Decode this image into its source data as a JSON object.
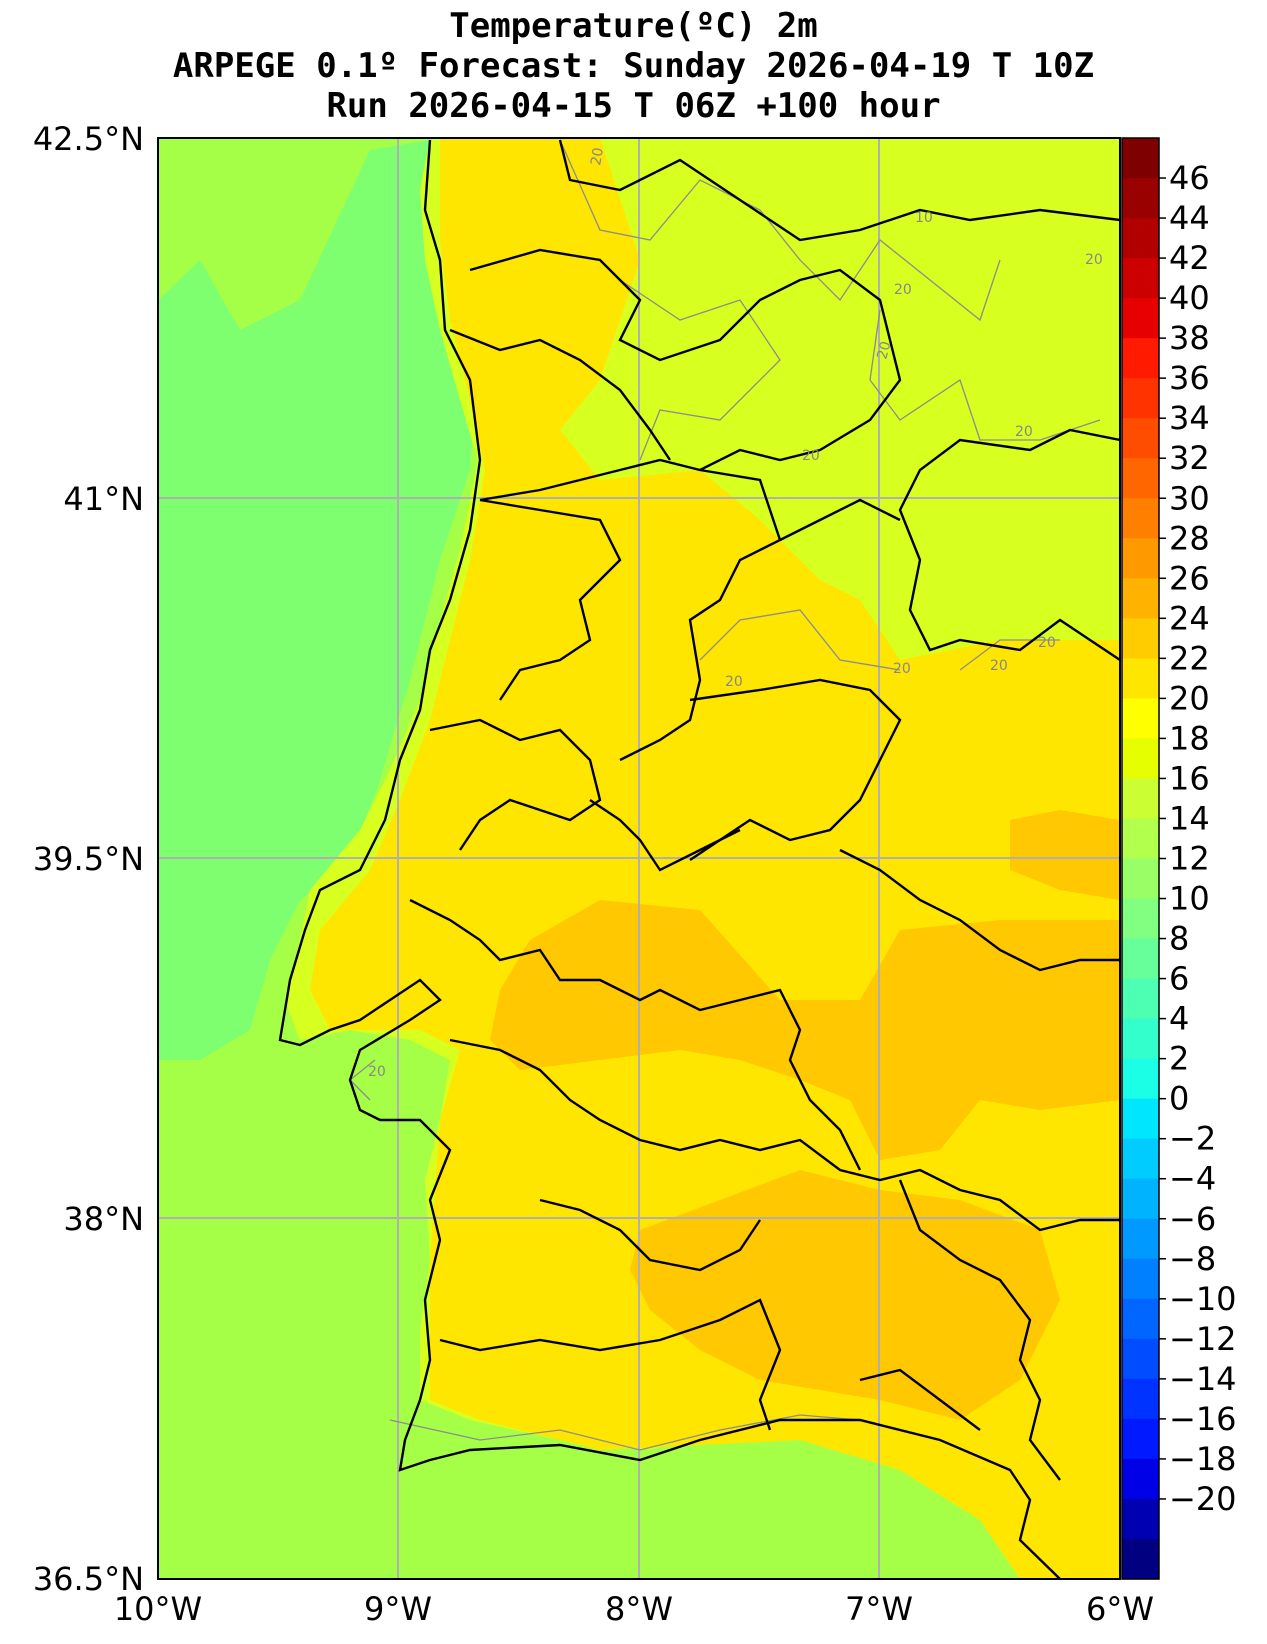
{
  "title": {
    "line1": "Temperature(ºC) 2m",
    "line2": "ARPEGE 0.1º Forecast: Sunday 2026-04-19 T 10Z",
    "line3": "Run 2026-04-15 T 06Z +100 hour"
  },
  "axes": {
    "x_ticks": [
      "10°W",
      "9°W",
      "8°W",
      "7°W",
      "6°W"
    ],
    "y_ticks": [
      "42.5°N",
      "41°N",
      "39.5°N",
      "38°N",
      "36.5°N"
    ]
  },
  "contour_labels": [
    "20",
    "10",
    "20",
    "20",
    "20",
    "20",
    "20",
    "20",
    "20",
    "20",
    "20",
    "20"
  ],
  "colorbar": {
    "labels": [
      "46",
      "44",
      "42",
      "40",
      "38",
      "36",
      "34",
      "32",
      "30",
      "28",
      "26",
      "24",
      "22",
      "20",
      "18",
      "16",
      "14",
      "12",
      "10",
      "8",
      "6",
      "4",
      "2",
      "0",
      "−2",
      "−4",
      "−6",
      "−8",
      "−10",
      "−12",
      "−14",
      "−16",
      "−18",
      "−20"
    ],
    "colors": [
      "#7f0000",
      "#990000",
      "#b20000",
      "#cc0000",
      "#e60000",
      "#ff1a00",
      "#ff3300",
      "#ff4d00",
      "#ff6600",
      "#ff8000",
      "#ff9900",
      "#ffb300",
      "#ffcc00",
      "#ffe600",
      "#ffff00",
      "#e6ff00",
      "#ccff33",
      "#b3ff4d",
      "#99ff66",
      "#80ff80",
      "#66ff99",
      "#4dffb3",
      "#33ffcc",
      "#1affe6",
      "#00e6ff",
      "#00ccff",
      "#00b3ff",
      "#0099ff",
      "#0080ff",
      "#0066ff",
      "#004dff",
      "#0033ff",
      "#001aff",
      "#0000e6",
      "#0000b3",
      "#000080"
    ]
  },
  "regions": {
    "ocean": "#a6ff47",
    "coastal_water": "#7dff70",
    "land_base": "#d7ff1f",
    "warm": "#ffe600",
    "hot": "#ffc800"
  }
}
